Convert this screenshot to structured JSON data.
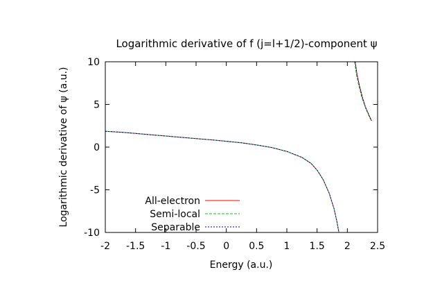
{
  "chart_data": {
    "type": "line",
    "title": "Logarithmic derivative of f (j=l+1/2)-component ψ",
    "xlabel": "Energy (a.u.)",
    "ylabel": "Logarithmic derivative of ψ (a.u.)",
    "xlim": [
      -2,
      2.5
    ],
    "ylim": [
      -10,
      10
    ],
    "xticks": [
      -2,
      -1.5,
      -1,
      -0.5,
      0,
      0.5,
      1,
      1.5,
      2,
      2.5
    ],
    "xtick_labels": [
      "-2",
      "-1.5",
      "-1",
      "-0.5",
      "0",
      "0.5",
      "1",
      "1.5",
      "2",
      "2.5"
    ],
    "yticks": [
      -10,
      -5,
      0,
      5,
      10
    ],
    "ytick_labels": [
      "-10",
      "-5",
      "0",
      "5",
      "10"
    ],
    "grid": false,
    "legend_position": "bottom-left",
    "series": [
      {
        "name": "All-electron",
        "color": "#ff0000",
        "dash": "solid",
        "points": [
          [
            -2.0,
            1.85
          ],
          [
            -1.75,
            1.75
          ],
          [
            -1.5,
            1.6
          ],
          [
            -1.25,
            1.45
          ],
          [
            -1.0,
            1.3
          ],
          [
            -0.75,
            1.15
          ],
          [
            -0.5,
            1.0
          ],
          [
            -0.25,
            0.85
          ],
          [
            0.0,
            0.68
          ],
          [
            0.25,
            0.5
          ],
          [
            0.5,
            0.25
          ],
          [
            0.75,
            -0.05
          ],
          [
            1.0,
            -0.5
          ],
          [
            1.25,
            -1.2
          ],
          [
            1.4,
            -1.9
          ],
          [
            1.5,
            -2.7
          ],
          [
            1.6,
            -3.8
          ],
          [
            1.7,
            -5.4
          ],
          [
            1.78,
            -7.2
          ],
          [
            1.83,
            -8.8
          ],
          [
            1.86,
            -10.0
          ]
        ],
        "branch2": [
          [
            2.13,
            10.0
          ],
          [
            2.16,
            8.5
          ],
          [
            2.2,
            7.2
          ],
          [
            2.25,
            5.8
          ],
          [
            2.3,
            4.7
          ],
          [
            2.36,
            3.7
          ],
          [
            2.4,
            3.1
          ]
        ]
      },
      {
        "name": "Semi-local",
        "color": "#00cc00",
        "dash": "4,2",
        "points": [
          [
            -2.0,
            1.85
          ],
          [
            -1.75,
            1.75
          ],
          [
            -1.5,
            1.6
          ],
          [
            -1.25,
            1.45
          ],
          [
            -1.0,
            1.3
          ],
          [
            -0.75,
            1.15
          ],
          [
            -0.5,
            1.0
          ],
          [
            -0.25,
            0.85
          ],
          [
            0.0,
            0.68
          ],
          [
            0.25,
            0.5
          ],
          [
            0.5,
            0.25
          ],
          [
            0.75,
            -0.05
          ],
          [
            1.0,
            -0.5
          ],
          [
            1.25,
            -1.2
          ],
          [
            1.4,
            -1.9
          ],
          [
            1.5,
            -2.7
          ],
          [
            1.6,
            -3.8
          ],
          [
            1.7,
            -5.4
          ],
          [
            1.78,
            -7.2
          ],
          [
            1.83,
            -8.8
          ],
          [
            1.86,
            -10.0
          ]
        ],
        "branch2": [
          [
            2.12,
            10.0
          ],
          [
            2.15,
            8.5
          ],
          [
            2.19,
            7.2
          ],
          [
            2.24,
            5.8
          ],
          [
            2.3,
            4.6
          ],
          [
            2.36,
            3.6
          ],
          [
            2.4,
            3.0
          ]
        ]
      },
      {
        "name": "Separable",
        "color": "#0000cc",
        "dash": "2,2",
        "points": [
          [
            -2.0,
            1.85
          ],
          [
            -1.75,
            1.75
          ],
          [
            -1.5,
            1.6
          ],
          [
            -1.25,
            1.45
          ],
          [
            -1.0,
            1.3
          ],
          [
            -0.75,
            1.15
          ],
          [
            -0.5,
            1.0
          ],
          [
            -0.25,
            0.85
          ],
          [
            0.0,
            0.68
          ],
          [
            0.25,
            0.5
          ],
          [
            0.5,
            0.25
          ],
          [
            0.75,
            -0.05
          ],
          [
            1.0,
            -0.5
          ],
          [
            1.25,
            -1.2
          ],
          [
            1.4,
            -1.9
          ],
          [
            1.5,
            -2.7
          ],
          [
            1.6,
            -3.8
          ],
          [
            1.7,
            -5.4
          ],
          [
            1.78,
            -7.2
          ],
          [
            1.83,
            -8.8
          ],
          [
            1.86,
            -10.0
          ]
        ],
        "branch2": [
          [
            2.13,
            10.0
          ],
          [
            2.16,
            8.5
          ],
          [
            2.2,
            7.2
          ],
          [
            2.25,
            5.8
          ],
          [
            2.3,
            4.7
          ],
          [
            2.36,
            3.7
          ],
          [
            2.4,
            3.1
          ]
        ]
      }
    ]
  }
}
